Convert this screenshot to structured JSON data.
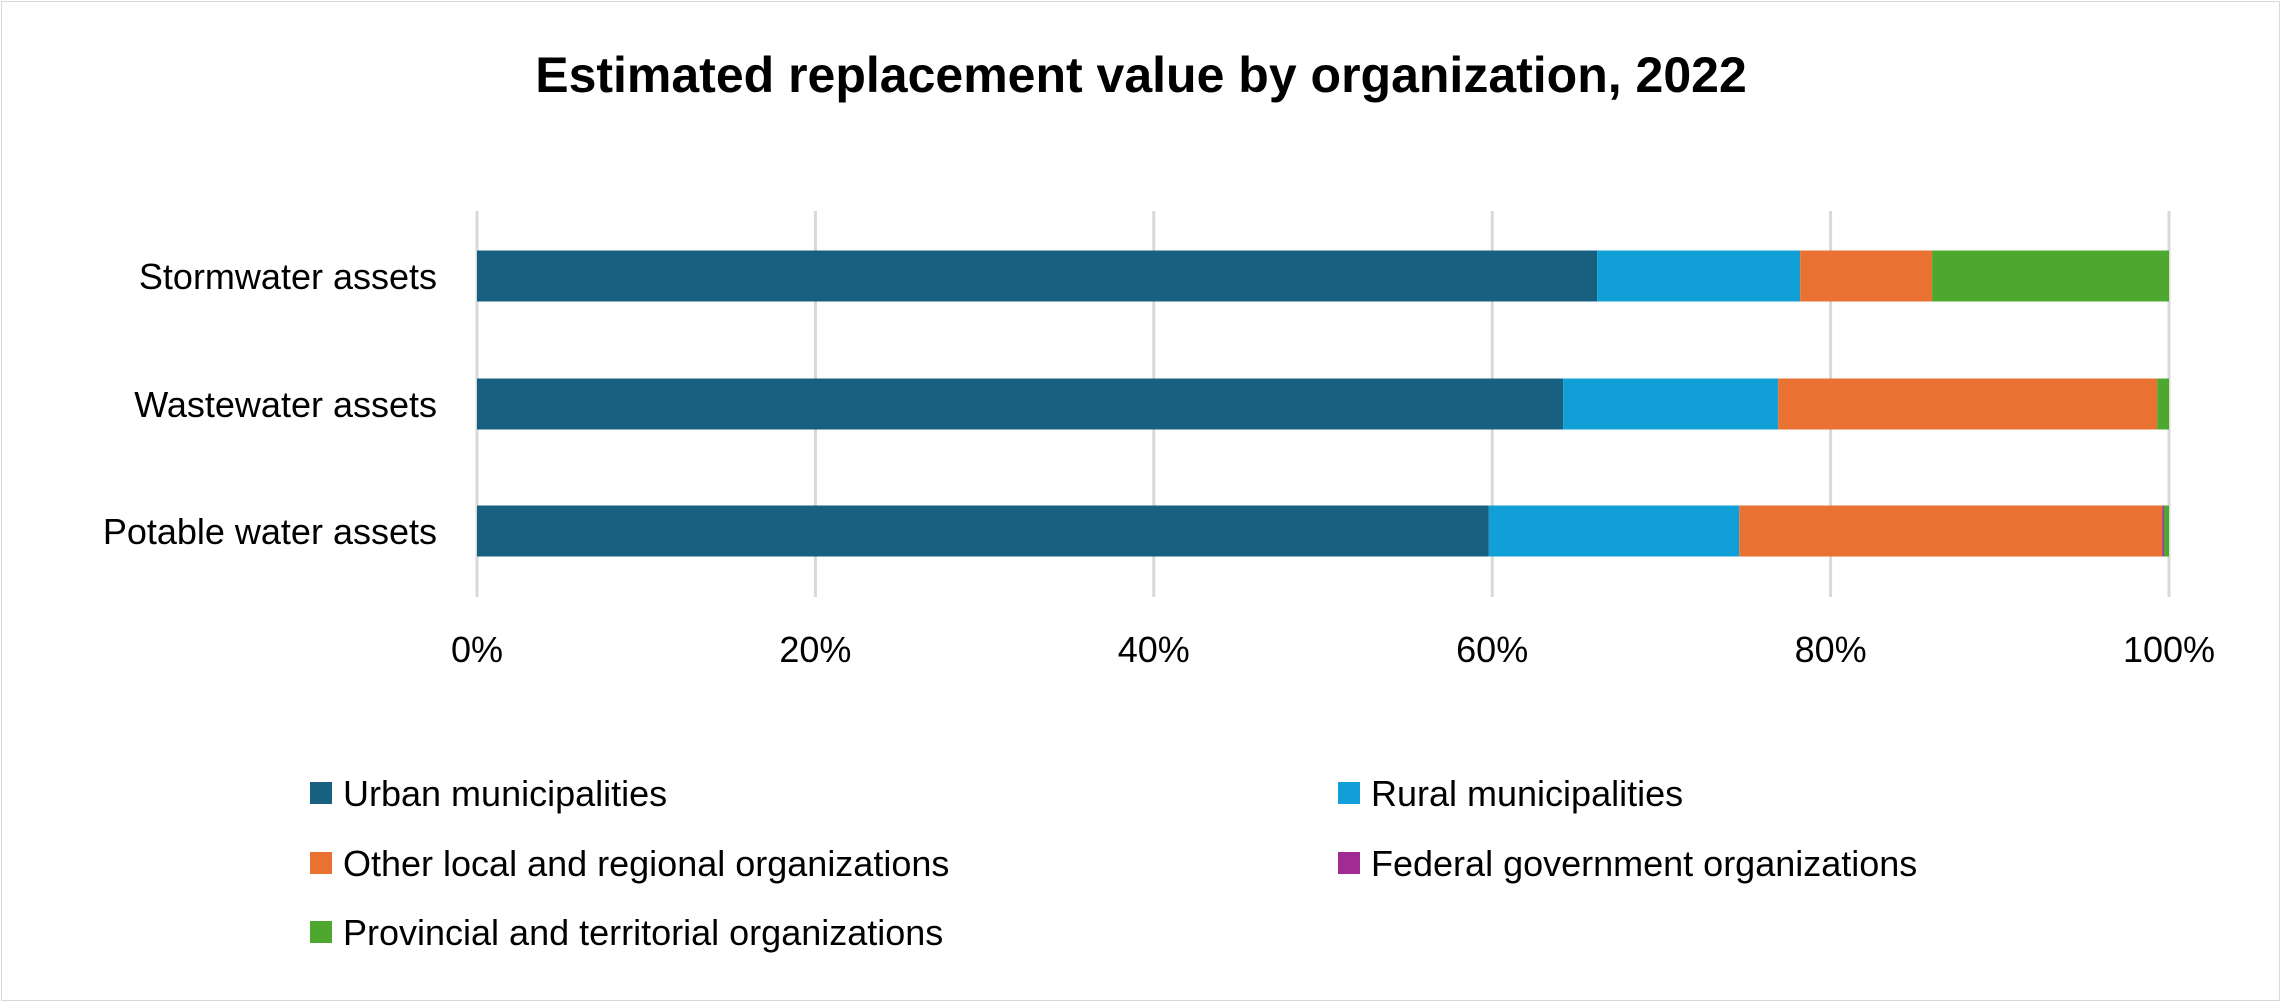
{
  "chart_data": {
    "type": "bar",
    "orientation": "horizontal",
    "stacked": "percent",
    "title": "Estimated replacement value by organization, 2022",
    "xlabel": "",
    "ylabel": "",
    "xlim": [
      0,
      100
    ],
    "x_ticks": [
      "0%",
      "20%",
      "40%",
      "60%",
      "80%",
      "100%"
    ],
    "grid": true,
    "legend_position": "bottom",
    "categories": [
      "Stormwater assets",
      "Wastewater assets",
      "Potable water assets"
    ],
    "series": [
      {
        "name": "Urban municipalities",
        "color": "#17607f",
        "values": [
          66.2,
          64.2,
          59.8
        ]
      },
      {
        "name": "Rural municipalities",
        "color": "#109fd6",
        "values": [
          12.0,
          12.7,
          14.8
        ]
      },
      {
        "name": "Other local and regional organizations",
        "color": "#e97132",
        "values": [
          7.8,
          22.4,
          25.0
        ]
      },
      {
        "name": "Federal government organizations",
        "color": "#a02b93",
        "values": [
          0.0,
          0.0,
          0.1
        ]
      },
      {
        "name": "Provincial and territorial organizations",
        "color": "#4ea72e",
        "values": [
          14.0,
          0.7,
          0.3
        ]
      }
    ]
  }
}
